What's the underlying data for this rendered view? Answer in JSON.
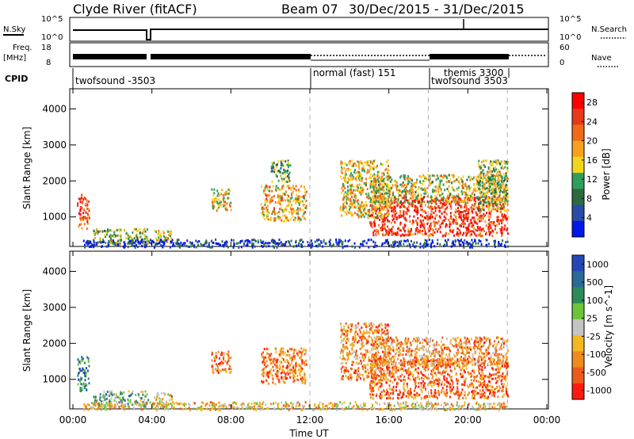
{
  "header": {
    "station": "Clyde River (fitACF)",
    "beam": "Beam 07",
    "date_range": "30/Dec/2015 - 31/Dec/2015"
  },
  "strips": {
    "nsky_label": "N.Sky",
    "nsky_ticks": [
      "10^5",
      "10^0"
    ],
    "nsearch_label": "N.Search",
    "nsearch_ticks": [
      "10^5",
      "10^0"
    ],
    "freq_label": "Freq.",
    "freq_unit": "[MHz]",
    "freq_ticks": [
      "18",
      "8"
    ],
    "nave_label": "Nave",
    "nave_ticks": [
      "60",
      "0"
    ],
    "cpid_label": "CPID",
    "cpid_segments": [
      {
        "label": "twofsound -3503",
        "start_hour": 0
      },
      {
        "label": "normal (fast) 151",
        "start_hour": 12
      },
      {
        "label": "themis 3300",
        "start_hour": 18
      },
      {
        "label": "twofsound 3503",
        "start_hour": 18
      }
    ]
  },
  "chart_data": [
    {
      "type": "heatmap",
      "parameter": "Power",
      "ylabel": "Slant Range [km]",
      "xlabel": "Time UT",
      "x_ticks": [
        "00:00",
        "04:00",
        "08:00",
        "12:00",
        "16:00",
        "20:00",
        "00:00"
      ],
      "xlim_hours": [
        0,
        24
      ],
      "y_ticks": [
        "1000",
        "2000",
        "3000",
        "4000"
      ],
      "ylim_km": [
        180,
        4560
      ],
      "colorbar_label": "Power [dB]",
      "colorbar_ticks": [
        "4",
        "8",
        "12",
        "16",
        "20",
        "24",
        "28"
      ],
      "colorbar_range": [
        0,
        30
      ],
      "colors": [
        "#0018e8",
        "#2c4aa8",
        "#2d6b3e",
        "#2f9e5c",
        "#f3d61a",
        "#f7a21c",
        "#ef6a19",
        "#e8381a",
        "#ff0000"
      ],
      "scatter_regions": [
        {
          "t0": 0.2,
          "t1": 0.8,
          "r0": 700,
          "r1": 1650,
          "level": 0.78
        },
        {
          "t0": 1.0,
          "t1": 3.8,
          "r0": 250,
          "r1": 700,
          "level": 0.45
        },
        {
          "t0": 4.1,
          "t1": 5.0,
          "r0": 250,
          "r1": 650,
          "level": 0.5
        },
        {
          "t0": 7.0,
          "t1": 8.0,
          "r0": 1200,
          "r1": 1800,
          "level": 0.55
        },
        {
          "t0": 9.5,
          "t1": 11.8,
          "r0": 900,
          "r1": 1900,
          "level": 0.6
        },
        {
          "t0": 10.0,
          "t1": 11.0,
          "r0": 2000,
          "r1": 2600,
          "level": 0.35
        },
        {
          "t0": 15.0,
          "t1": 22.0,
          "r0": 500,
          "r1": 1600,
          "level": 0.85
        },
        {
          "t0": 15.0,
          "t1": 22.0,
          "r0": 1400,
          "r1": 2200,
          "level": 0.5
        },
        {
          "t0": 13.5,
          "t1": 16.0,
          "r0": 1000,
          "r1": 2600,
          "level": 0.55
        },
        {
          "t0": 20.5,
          "t1": 22.0,
          "r0": 1200,
          "r1": 2600,
          "level": 0.45
        },
        {
          "t0": 0.5,
          "t1": 22.0,
          "r0": 180,
          "r1": 400,
          "level": 0.12
        }
      ]
    },
    {
      "type": "heatmap",
      "parameter": "Velocity",
      "ylabel": "Slant Range [km]",
      "xlabel": "Time UT",
      "x_ticks": [
        "00:00",
        "04:00",
        "08:00",
        "12:00",
        "16:00",
        "20:00",
        "00:00"
      ],
      "xlim_hours": [
        0,
        24
      ],
      "y_ticks": [
        "1000",
        "2000",
        "3000",
        "4000"
      ],
      "ylim_km": [
        180,
        4560
      ],
      "colorbar_label": "Velocity [m s^-1]",
      "colorbar_ticks": [
        "1000",
        "500",
        "100",
        "25",
        "-25",
        "-100",
        "-500",
        "-1000"
      ],
      "colors": [
        "#2548b8",
        "#2a6a96",
        "#2f8a5a",
        "#6cc43a",
        "#c4c4c4",
        "#f3b820",
        "#f08a1c",
        "#ee5a1a",
        "#ff1a10"
      ],
      "scatter_regions": [
        {
          "t0": 0.2,
          "t1": 0.8,
          "r0": 700,
          "r1": 1650,
          "level": 0.2
        },
        {
          "t0": 1.0,
          "t1": 3.8,
          "r0": 250,
          "r1": 700,
          "level": 0.35
        },
        {
          "t0": 4.1,
          "t1": 5.0,
          "r0": 250,
          "r1": 650,
          "level": 0.55
        },
        {
          "t0": 7.0,
          "t1": 8.0,
          "r0": 1200,
          "r1": 1800,
          "level": 0.75
        },
        {
          "t0": 9.5,
          "t1": 11.8,
          "r0": 900,
          "r1": 1900,
          "level": 0.78
        },
        {
          "t0": 15.0,
          "t1": 22.0,
          "r0": 500,
          "r1": 1600,
          "level": 0.8
        },
        {
          "t0": 15.0,
          "t1": 22.0,
          "r0": 1400,
          "r1": 2200,
          "level": 0.7
        },
        {
          "t0": 13.5,
          "t1": 16.0,
          "r0": 1000,
          "r1": 2600,
          "level": 0.72
        },
        {
          "t0": 0.5,
          "t1": 22.0,
          "r0": 180,
          "r1": 400,
          "level": 0.6
        }
      ]
    }
  ]
}
